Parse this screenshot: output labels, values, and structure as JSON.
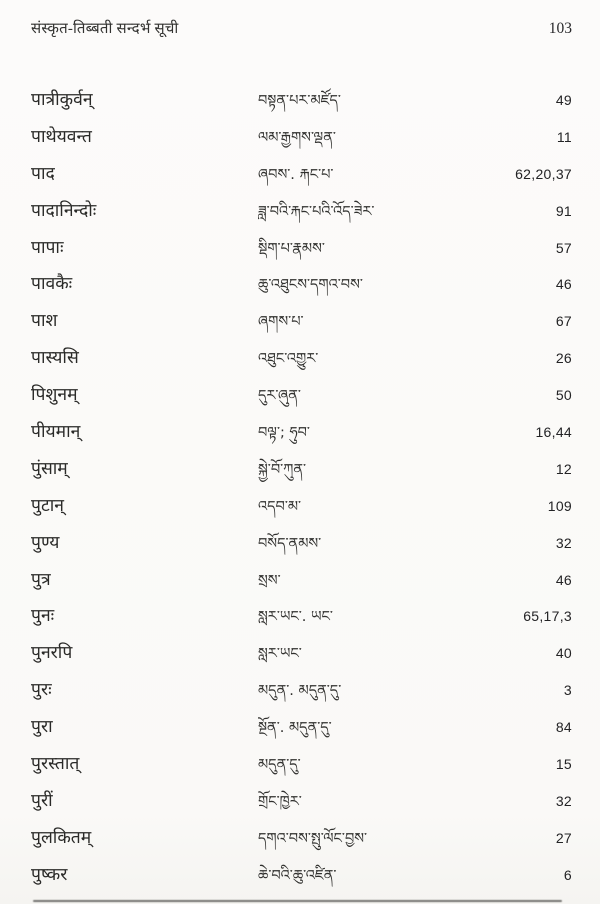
{
  "page": {
    "running_title": "संस्कृत-तिब्बती सन्दर्भ सूची",
    "page_number": "103"
  },
  "index_rows": [
    {
      "sanskrit": "पात्रीकुर्वन्",
      "tibetan": "བསྟན་པར་མཛོད་",
      "refs": "49"
    },
    {
      "sanskrit": "पाथेयवन्त",
      "tibetan": "ལམ་རྒྱགས་ལྡན་",
      "refs": "11"
    },
    {
      "sanskrit": "पाद",
      "tibetan": "ཞབས་. རྐང་པ་",
      "refs": "62,20,37"
    },
    {
      "sanskrit": "पादानिन्दोः",
      "tibetan": "ཟླ་བའི་རྐང་པའི་འོད་ཟེར་",
      "refs": "91"
    },
    {
      "sanskrit": "पापाः",
      "tibetan": "སྡིག་པ་རྣམས་",
      "refs": "57"
    },
    {
      "sanskrit": "पावकैः",
      "tibetan": "ཆུ་འཐུངས་དགའ་བས་",
      "refs": "46"
    },
    {
      "sanskrit": "पाश",
      "tibetan": "ཞགས་པ་",
      "refs": "67"
    },
    {
      "sanskrit": "पास्यसि",
      "tibetan": "འཐུང་འགྱུར་",
      "refs": "26"
    },
    {
      "sanskrit": "पिशुनम्",
      "tibetan": "དུར་ཞུན་",
      "refs": "50"
    },
    {
      "sanskrit": "पीयमान्",
      "tibetan": "བལྟ་; ཧུབ་",
      "refs": "16,44"
    },
    {
      "sanskrit": "पुंसाम्",
      "tibetan": "སྐྱེ་བོ་ཀུན་",
      "refs": "12"
    },
    {
      "sanskrit": "पुटान्",
      "tibetan": "འདབ་མ་",
      "refs": "109"
    },
    {
      "sanskrit": "पुण्य",
      "tibetan": "བསོད་ནམས་",
      "refs": "32"
    },
    {
      "sanskrit": "पुत्र",
      "tibetan": "སྲས་",
      "refs": "46"
    },
    {
      "sanskrit": "पुनः",
      "tibetan": "སླར་ཡང་. ཡང་",
      "refs": "65,17,3"
    },
    {
      "sanskrit": "पुनरपि",
      "tibetan": "སླར་ཡང་",
      "refs": "40"
    },
    {
      "sanskrit": "पुरः",
      "tibetan": "མདུན་. མདུན་དུ་",
      "refs": "3"
    },
    {
      "sanskrit": "पुरा",
      "tibetan": "སྔོན་. མདུན་དུ་",
      "refs": "84"
    },
    {
      "sanskrit": "पुरस्तात्",
      "tibetan": "མདུན་དུ་",
      "refs": "15"
    },
    {
      "sanskrit": "पुरीं",
      "tibetan": "གྲོང་ཁྱེར་",
      "refs": "32"
    },
    {
      "sanskrit": "पुलकितम्",
      "tibetan": "དགའ་བས་སྤུ་ལོང་བྱས་",
      "refs": "27"
    },
    {
      "sanskrit": "पुष्कर",
      "tibetan": "ཆེ་བའི་ཆུ་འཛིན་",
      "refs": "6"
    }
  ],
  "colors": {
    "paper": "#fbfaf8",
    "ink": "#2b2b2b"
  }
}
